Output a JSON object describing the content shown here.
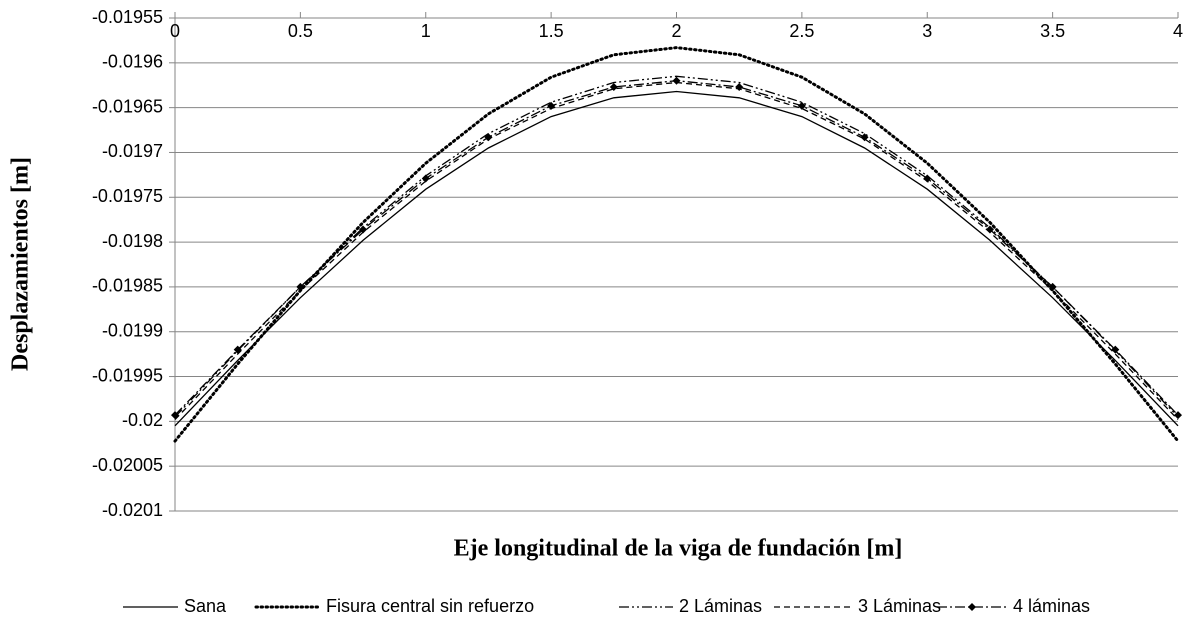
{
  "chart_data": {
    "type": "line",
    "x_label": "Eje longitudinal de la viga de fundación [m]",
    "y_label": "Desplazamientos [m]",
    "x": [
      0,
      0.25,
      0.5,
      0.75,
      1,
      1.25,
      1.5,
      1.75,
      2,
      2.25,
      2.5,
      2.75,
      3,
      3.25,
      3.5,
      3.75,
      4
    ],
    "series": [
      {
        "name": "Sana",
        "color": "#000000",
        "values": [
          -0.020005,
          -0.019932,
          -0.019862,
          -0.019798,
          -0.019741,
          -0.019695,
          -0.01966,
          -0.019639,
          -0.019632,
          -0.019639,
          -0.01966,
          -0.019695,
          -0.019741,
          -0.019798,
          -0.019862,
          -0.019932,
          -0.020005
        ]
      },
      {
        "name": "Fisura central sin refuerzo",
        "color": "#000000",
        "values": [
          -0.020022,
          -0.019936,
          -0.019854,
          -0.019778,
          -0.019712,
          -0.019657,
          -0.019616,
          -0.019591,
          -0.019583,
          -0.019591,
          -0.019616,
          -0.019657,
          -0.019712,
          -0.019778,
          -0.019854,
          -0.019936,
          -0.020022
        ]
      },
      {
        "name": "2 Láminas",
        "color": "#000000",
        "values": [
          -0.019995,
          -0.019921,
          -0.01985,
          -0.019784,
          -0.019726,
          -0.019679,
          -0.019644,
          -0.019622,
          -0.019615,
          -0.019622,
          -0.019644,
          -0.019679,
          -0.019726,
          -0.019784,
          -0.01985,
          -0.019921,
          -0.019995
        ]
      },
      {
        "name": "3 Láminas",
        "color": "#000000",
        "values": [
          -0.019998,
          -0.019925,
          -0.019854,
          -0.019789,
          -0.019732,
          -0.019685,
          -0.019651,
          -0.019629,
          -0.019622,
          -0.019629,
          -0.019651,
          -0.019685,
          -0.019732,
          -0.019789,
          -0.019854,
          -0.019925,
          -0.019998
        ]
      },
      {
        "name": "4 láminas",
        "color": "#000000",
        "values": [
          -0.019993,
          -0.01992,
          -0.01985,
          -0.019786,
          -0.019729,
          -0.019683,
          -0.019648,
          -0.019627,
          -0.01962,
          -0.019627,
          -0.019648,
          -0.019683,
          -0.019729,
          -0.019786,
          -0.01985,
          -0.01992,
          -0.019993
        ]
      }
    ],
    "xlim": [
      0,
      4
    ],
    "xticks": [
      0,
      0.5,
      1,
      1.5,
      2,
      2.5,
      3,
      3.5,
      4
    ],
    "ylim": [
      -0.0201,
      -0.01955
    ],
    "yticks": [
      -0.01955,
      -0.0196,
      -0.01965,
      -0.0197,
      -0.01975,
      -0.0198,
      -0.01985,
      -0.0199,
      -0.01995,
      -0.02,
      -0.02005,
      -0.0201
    ],
    "grid": true,
    "legend": "bottom"
  }
}
